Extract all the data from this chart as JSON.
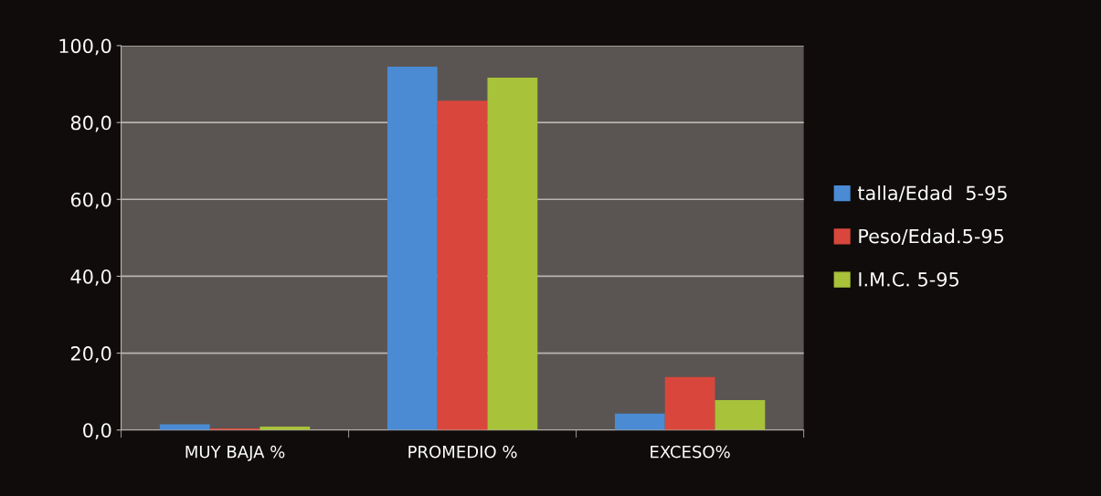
{
  "chart_data": {
    "type": "bar",
    "categories": [
      "MUY BAJA %",
      "PROMEDIO %",
      "EXCESO%"
    ],
    "series": [
      {
        "name": "talla/Edad  5-95",
        "color": "#4a8bd4",
        "values": [
          1.5,
          94.5,
          4.3
        ]
      },
      {
        "name": "Peso/Edad.5-95",
        "color": "#d9473c",
        "values": [
          0.4,
          85.7,
          13.8
        ]
      },
      {
        "name": "I.M.C. 5-95",
        "color": "#a8c23a",
        "values": [
          0.9,
          91.7,
          7.8
        ]
      }
    ],
    "ylim": [
      0,
      100
    ],
    "yticks": [
      {
        "value": 0,
        "label": "0,0"
      },
      {
        "value": 20,
        "label": "20,0"
      },
      {
        "value": 40,
        "label": "40,0"
      },
      {
        "value": 60,
        "label": "60,0"
      },
      {
        "value": 80,
        "label": "80,0"
      },
      {
        "value": 100,
        "label": "100,0"
      }
    ],
    "grid": "y",
    "legend": "right"
  }
}
